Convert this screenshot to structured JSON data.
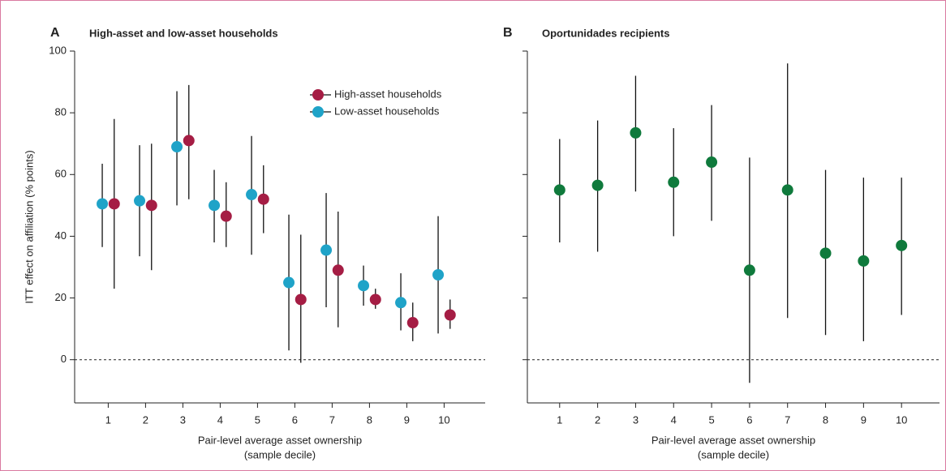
{
  "chart_data": [
    {
      "type": "errorbar",
      "panel": "A",
      "title": "High-asset and low-asset households",
      "ylabel": "ITT effect on affiliation (% points)",
      "xlabel": [
        "Pair-level average asset ownership",
        "(sample decile)"
      ],
      "x": [
        1,
        2,
        3,
        4,
        5,
        6,
        7,
        8,
        9,
        10
      ],
      "xlim": [
        0.1,
        11.1
      ],
      "xticks": [
        1,
        2,
        3,
        4,
        5,
        6,
        7,
        8,
        9,
        10
      ],
      "ylim": [
        -14,
        100
      ],
      "yticks": [
        0,
        20,
        40,
        60,
        80,
        100
      ],
      "show_ytick_labels": true,
      "reference_line": 0,
      "legend": "upper right",
      "series": [
        {
          "name": "High-asset households",
          "color": "#a51d44",
          "values": [
            50.5,
            50,
            71,
            46.5,
            52,
            19.5,
            29,
            19.5,
            12,
            14.5
          ],
          "ci_low": [
            23,
            29,
            52,
            36.5,
            41,
            -1,
            10.5,
            16.5,
            6,
            10
          ],
          "ci_high": [
            78,
            70,
            89,
            57.5,
            63,
            40.5,
            48,
            23,
            18.5,
            19.5
          ]
        },
        {
          "name": "Low-asset households",
          "color": "#1fa3c8",
          "values": [
            50.5,
            51.5,
            69,
            50,
            53.5,
            25,
            35.5,
            24,
            18.5,
            27.5
          ],
          "ci_low": [
            36.5,
            33.5,
            50,
            38,
            34,
            3,
            17,
            17.5,
            9.5,
            8.5
          ],
          "ci_high": [
            63.5,
            69.5,
            87,
            61.5,
            72.5,
            47,
            54,
            30.5,
            28,
            46.5
          ]
        }
      ]
    },
    {
      "type": "errorbar",
      "panel": "B",
      "title": "Oportunidades recipients",
      "xlabel": [
        "Pair-level average asset ownership",
        "(sample decile)"
      ],
      "x": [
        1,
        2,
        3,
        4,
        5,
        6,
        7,
        8,
        9,
        10
      ],
      "xlim": [
        0.15,
        11.0
      ],
      "xticks": [
        1,
        2,
        3,
        4,
        5,
        6,
        7,
        8,
        9,
        10
      ],
      "ylim": [
        -14,
        100
      ],
      "yticks": [
        0,
        20,
        40,
        60,
        80,
        100
      ],
      "show_ytick_labels": false,
      "reference_line": 0,
      "series": [
        {
          "color": "#0f7a3c",
          "values": [
            55,
            56.5,
            73.5,
            57.5,
            64,
            29,
            55,
            34.5,
            32,
            37
          ],
          "ci_low": [
            38,
            35,
            54.5,
            40,
            45,
            -7.5,
            13.5,
            8,
            6,
            14.5
          ],
          "ci_high": [
            71.5,
            77.5,
            92,
            75,
            82.5,
            65.5,
            96,
            61.5,
            59,
            59
          ]
        }
      ]
    }
  ]
}
